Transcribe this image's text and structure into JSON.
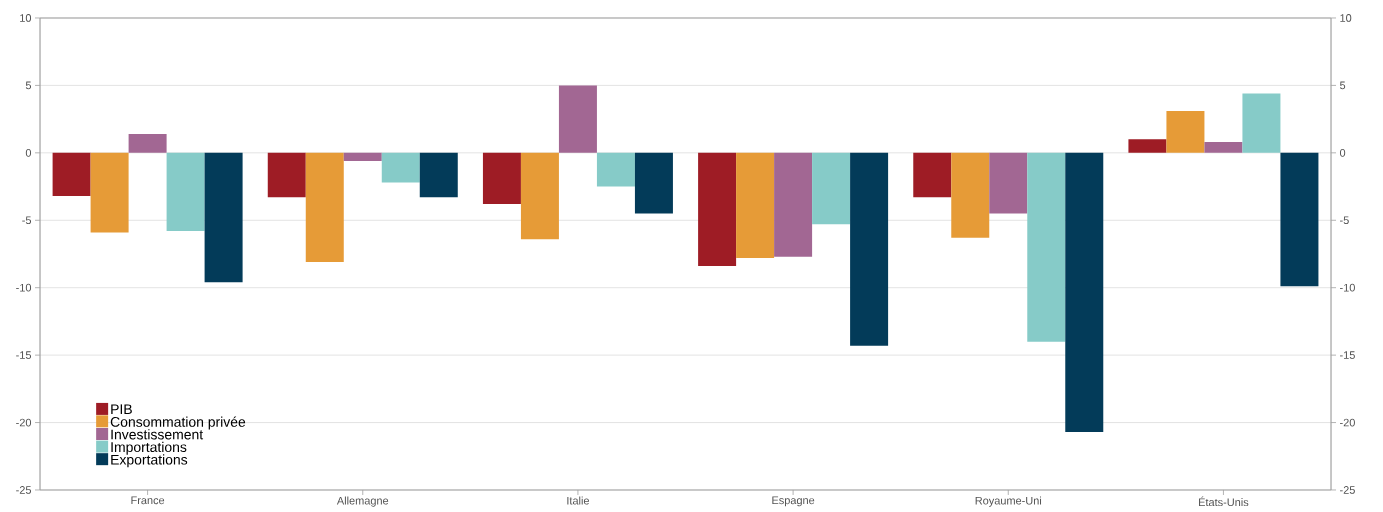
{
  "chart_data": {
    "type": "bar",
    "categories": [
      "France",
      "Allemagne",
      "Italie",
      "Espagne",
      "Royaume-Uni",
      "États-Unis"
    ],
    "series": [
      {
        "name": "PIB",
        "color": "#9e1c25",
        "values": [
          -3.2,
          -3.3,
          -3.8,
          -8.4,
          -3.3,
          1.0
        ]
      },
      {
        "name": "Consommation privée",
        "color": "#e69b37",
        "values": [
          -5.9,
          -8.1,
          -6.4,
          -7.8,
          -6.3,
          3.1
        ]
      },
      {
        "name": "Investissement",
        "color": "#a26793",
        "values": [
          1.4,
          -0.6,
          5.0,
          -7.7,
          -4.5,
          0.8
        ]
      },
      {
        "name": "Importations",
        "color": "#86cbc8",
        "values": [
          -5.8,
          -2.2,
          -2.5,
          -5.3,
          -14.0,
          4.4
        ]
      },
      {
        "name": "Exportations",
        "color": "#033b59",
        "values": [
          -9.6,
          -3.3,
          -4.5,
          -14.3,
          -20.7,
          -9.9
        ]
      }
    ],
    "ylim": [
      -25,
      10
    ],
    "yticks": [
      -25,
      -20,
      -15,
      -10,
      -5,
      0,
      5,
      10
    ],
    "y2lim": [
      -25,
      10
    ],
    "y2ticks": [
      -25,
      -20,
      -15,
      -10,
      -5,
      0,
      5,
      10
    ],
    "grid": "y",
    "legend": "bottom left"
  }
}
